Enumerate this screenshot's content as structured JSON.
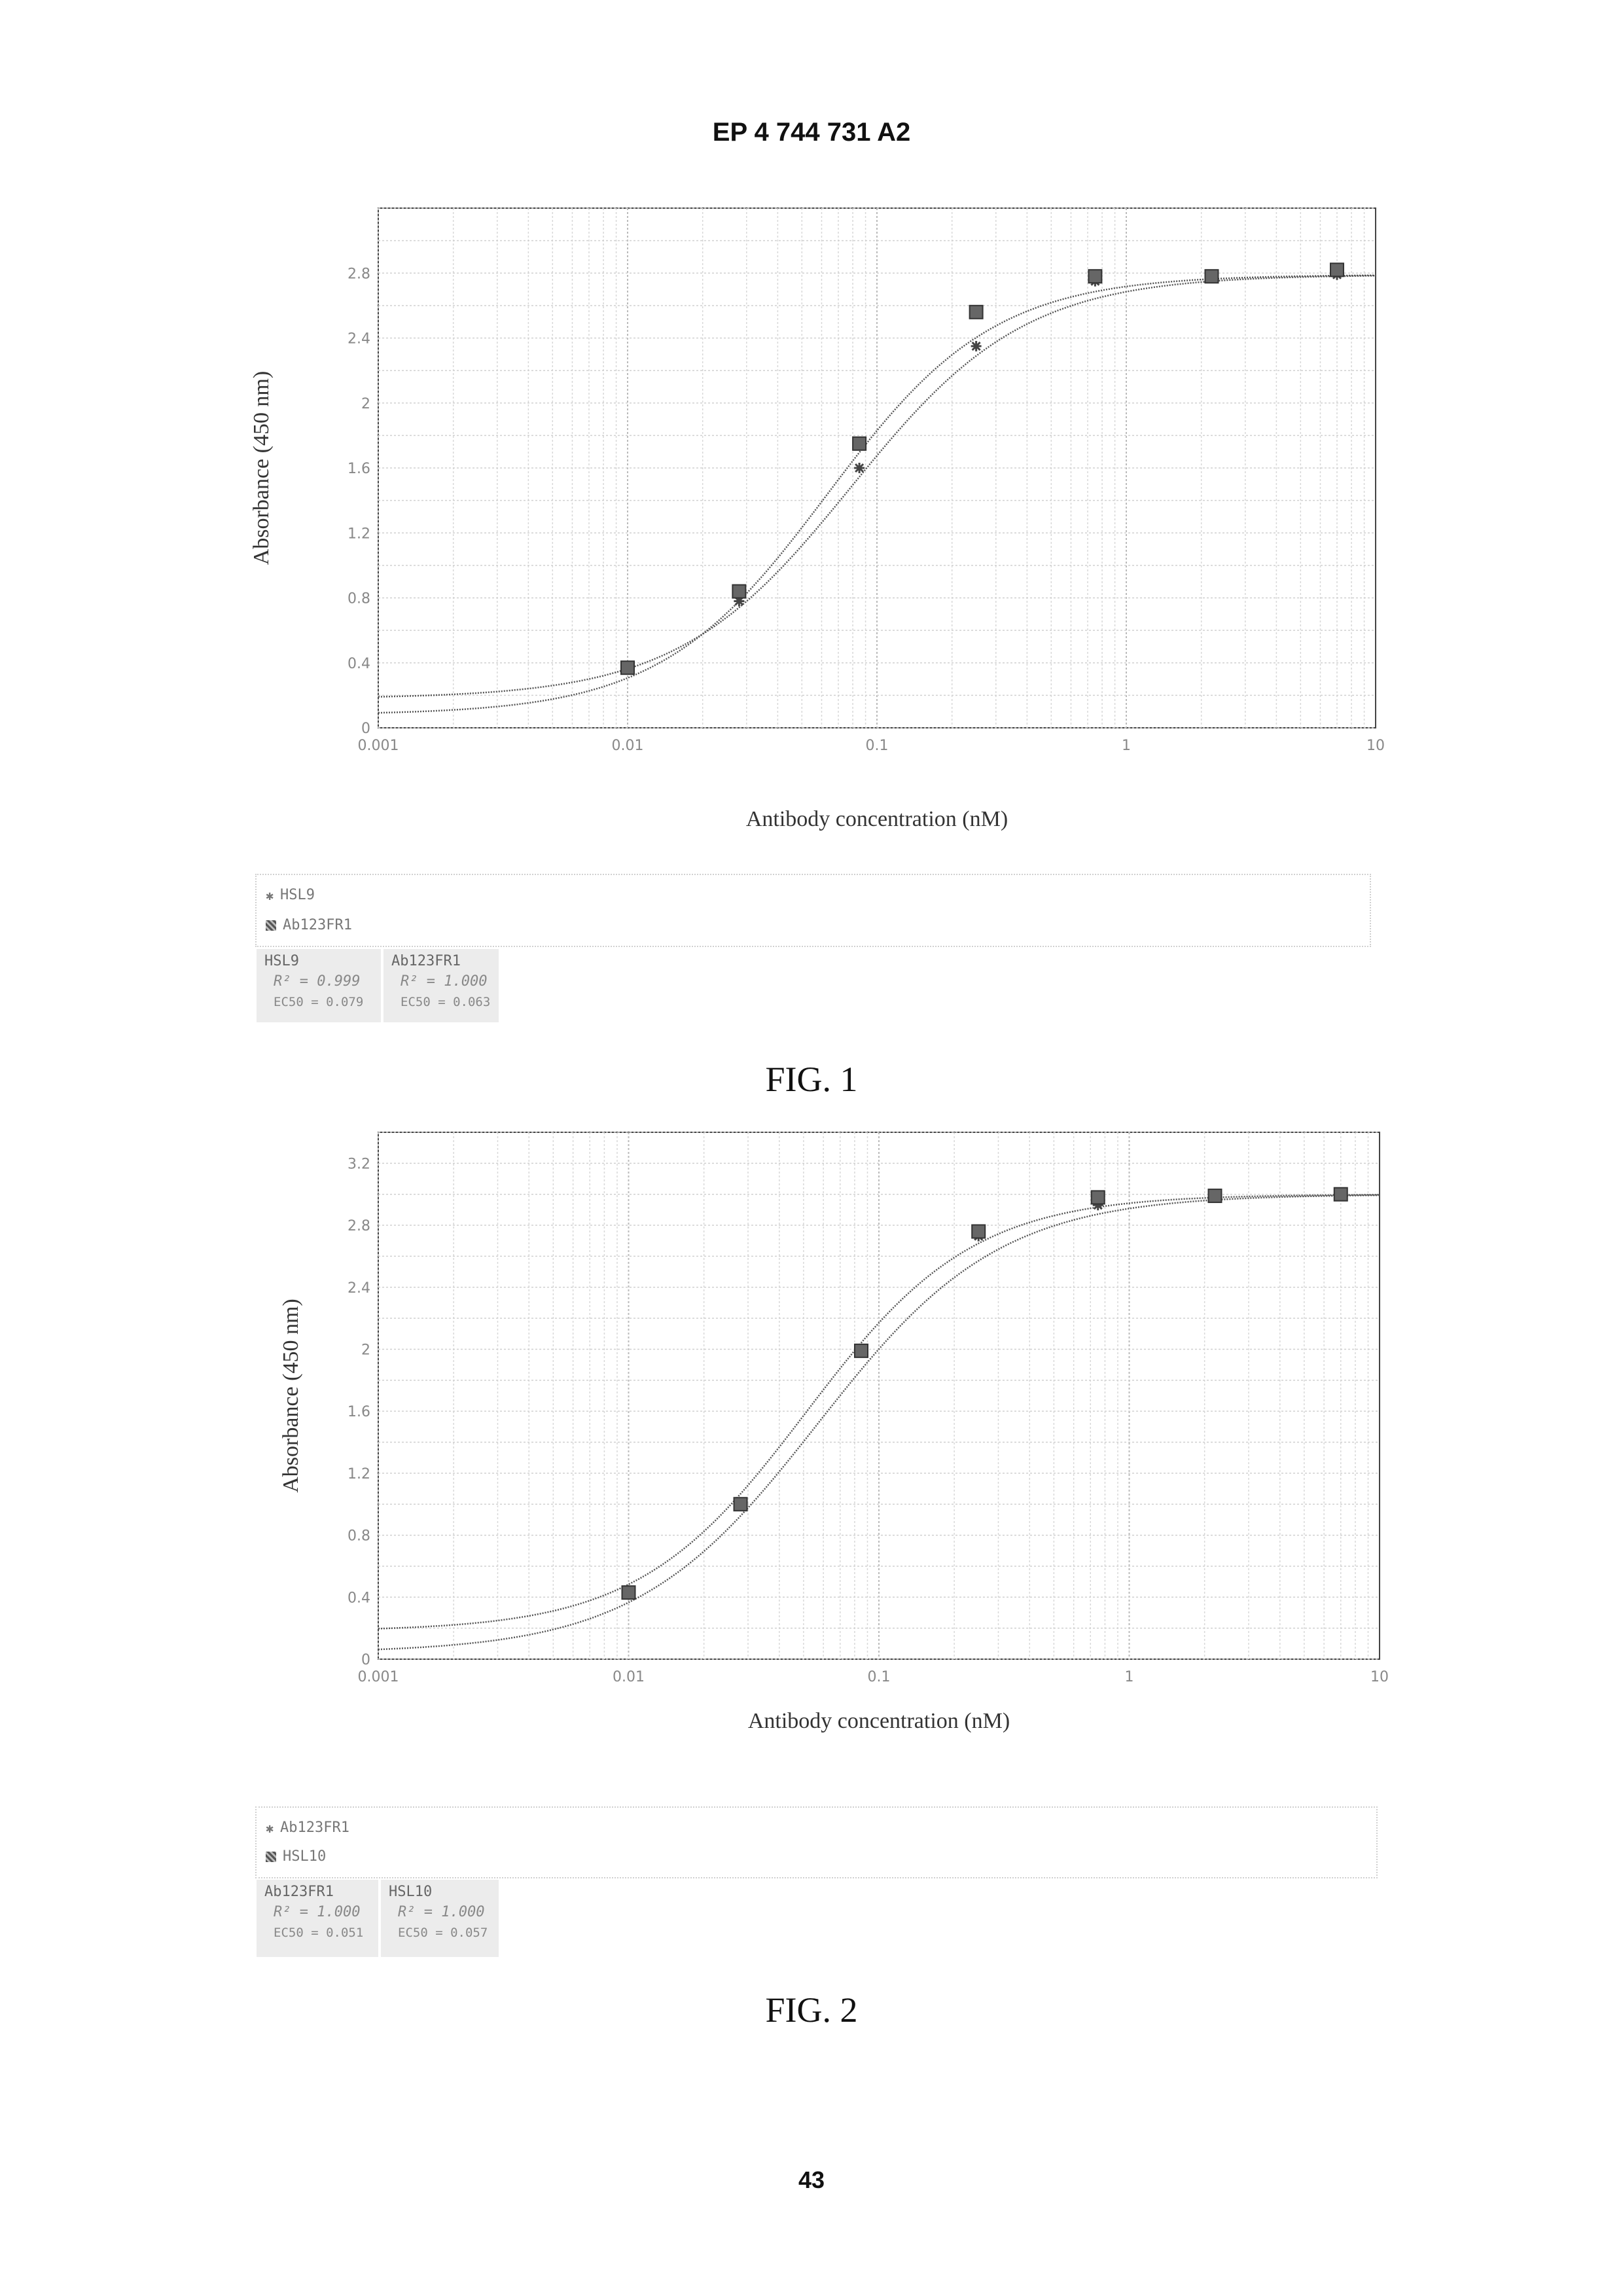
{
  "page": {
    "header": "EP 4 744 731 A2",
    "page_number": "43"
  },
  "figures": [
    {
      "caption": "FIG. 1",
      "legend": [
        {
          "label": "HSL9",
          "marker": "star"
        },
        {
          "label": "Ab123FR1",
          "marker": "box"
        }
      ],
      "stats": [
        {
          "name": "HSL9",
          "r2": "R² = 0.999",
          "ec50": "EC50 = 0.079"
        },
        {
          "name": "Ab123FR1",
          "r2": "R² = 1.000",
          "ec50": "EC50 = 0.063"
        }
      ]
    },
    {
      "caption": "FIG. 2",
      "legend": [
        {
          "label": "Ab123FR1",
          "marker": "star"
        },
        {
          "label": "HSL10",
          "marker": "box"
        }
      ],
      "stats": [
        {
          "name": "Ab123FR1",
          "r2": "R² = 1.000",
          "ec50": "EC50 = 0.051"
        },
        {
          "name": "HSL10",
          "r2": "R² = 1.000",
          "ec50": "EC50 = 0.057"
        }
      ]
    }
  ],
  "chart_data": [
    {
      "type": "scatter",
      "xlabel": "Antibody concentration (nM)",
      "ylabel": "Absorbance (450 nm)",
      "xscale": "log",
      "xlim": [
        0.001,
        10
      ],
      "ylim": [
        0,
        3.2
      ],
      "x_ticks": [
        "0.001",
        "0.01",
        "0.1",
        "1",
        "10"
      ],
      "y_ticks": [
        "0",
        "0.4",
        "0.8",
        "1.2",
        "1.6",
        "2",
        "2.4",
        "2.8"
      ],
      "grid": true,
      "series": [
        {
          "name": "HSL9",
          "marker": "star",
          "x": [
            0.01,
            0.028,
            0.085,
            0.25,
            0.75,
            2.2,
            7.0
          ],
          "y": [
            0.38,
            0.78,
            1.6,
            2.35,
            2.75,
            2.78,
            2.79
          ],
          "fit": {
            "bottom": 0.18,
            "top": 2.79,
            "ec50": 0.079,
            "hill": 1.25
          }
        },
        {
          "name": "Ab123FR1",
          "marker": "box",
          "x": [
            0.01,
            0.028,
            0.085,
            0.25,
            0.75,
            2.2,
            7.0
          ],
          "y": [
            0.37,
            0.84,
            1.75,
            2.56,
            2.78,
            2.78,
            2.82
          ],
          "fit": {
            "bottom": 0.08,
            "top": 2.79,
            "ec50": 0.063,
            "hill": 1.3
          }
        }
      ]
    },
    {
      "type": "scatter",
      "xlabel": "Antibody concentration (nM)",
      "ylabel": "Absorbance (450 nm)",
      "xscale": "log",
      "xlim": [
        0.001,
        10
      ],
      "ylim": [
        0,
        3.4
      ],
      "x_ticks": [
        "0.001",
        "0.01",
        "0.1",
        "1",
        "10"
      ],
      "y_ticks": [
        "0",
        "0.4",
        "0.8",
        "1.2",
        "1.6",
        "2",
        "2.4",
        "2.8",
        "3.2"
      ],
      "grid": true,
      "series": [
        {
          "name": "Ab123FR1",
          "marker": "star",
          "x": [
            0.01,
            0.028,
            0.085,
            0.25,
            0.75,
            2.2,
            7.0
          ],
          "y": [
            0.43,
            1.0,
            1.98,
            2.73,
            2.93,
            2.99,
            3.0
          ],
          "fit": {
            "bottom": 0.18,
            "top": 3.0,
            "ec50": 0.051,
            "hill": 1.3
          }
        },
        {
          "name": "HSL10",
          "marker": "box",
          "x": [
            0.01,
            0.028,
            0.085,
            0.25,
            0.75,
            2.2,
            7.0
          ],
          "y": [
            0.43,
            1.0,
            1.99,
            2.76,
            2.98,
            2.99,
            3.0
          ],
          "fit": {
            "bottom": 0.04,
            "top": 3.0,
            "ec50": 0.057,
            "hill": 1.2
          }
        }
      ]
    }
  ]
}
